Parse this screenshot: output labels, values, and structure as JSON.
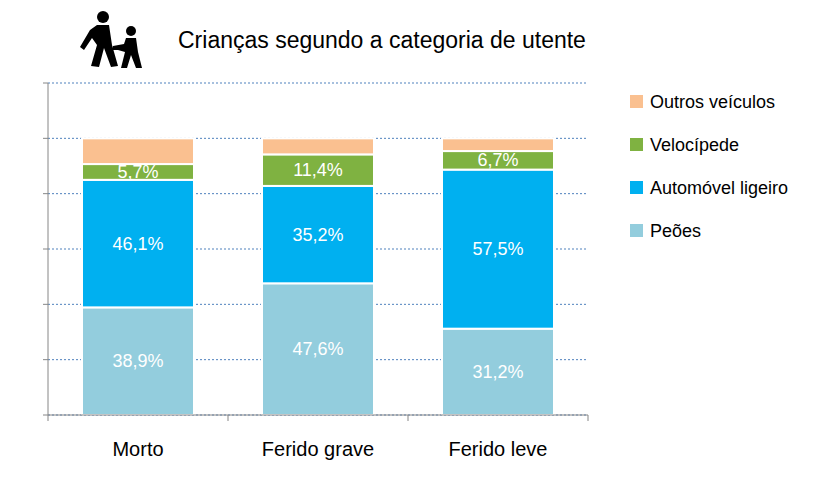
{
  "chart_data": {
    "type": "bar",
    "stacked": true,
    "title": "Crianças segundo a categoria de utente",
    "categories": [
      "Morto",
      "Ferido grave",
      "Ferido leve"
    ],
    "series": [
      {
        "name": "Peões",
        "color": "#93cddd",
        "values": [
          38.9,
          47.6,
          31.2
        ],
        "value_labels": [
          "38,9%",
          "47,6%",
          "31,2%"
        ]
      },
      {
        "name": "Automóvel ligeiro",
        "color": "#00b0f0",
        "values": [
          46.1,
          35.2,
          57.5
        ],
        "value_labels": [
          "46,1%",
          "35,2%",
          "57,5%"
        ]
      },
      {
        "name": "Velocípede",
        "color": "#7fb241",
        "values": [
          5.7,
          11.4,
          6.7
        ],
        "value_labels": [
          "5,7%",
          "11,4%",
          "6,7%"
        ]
      },
      {
        "name": "Outros veículos",
        "color": "#fac090",
        "values": [
          9.3,
          5.8,
          4.6
        ]
      }
    ],
    "ylim": [
      0,
      120
    ],
    "yticks": [
      0,
      20,
      40,
      60,
      80,
      100,
      120
    ],
    "grid": true,
    "legend": "right",
    "data_labels": true,
    "tick_labels": "x"
  }
}
